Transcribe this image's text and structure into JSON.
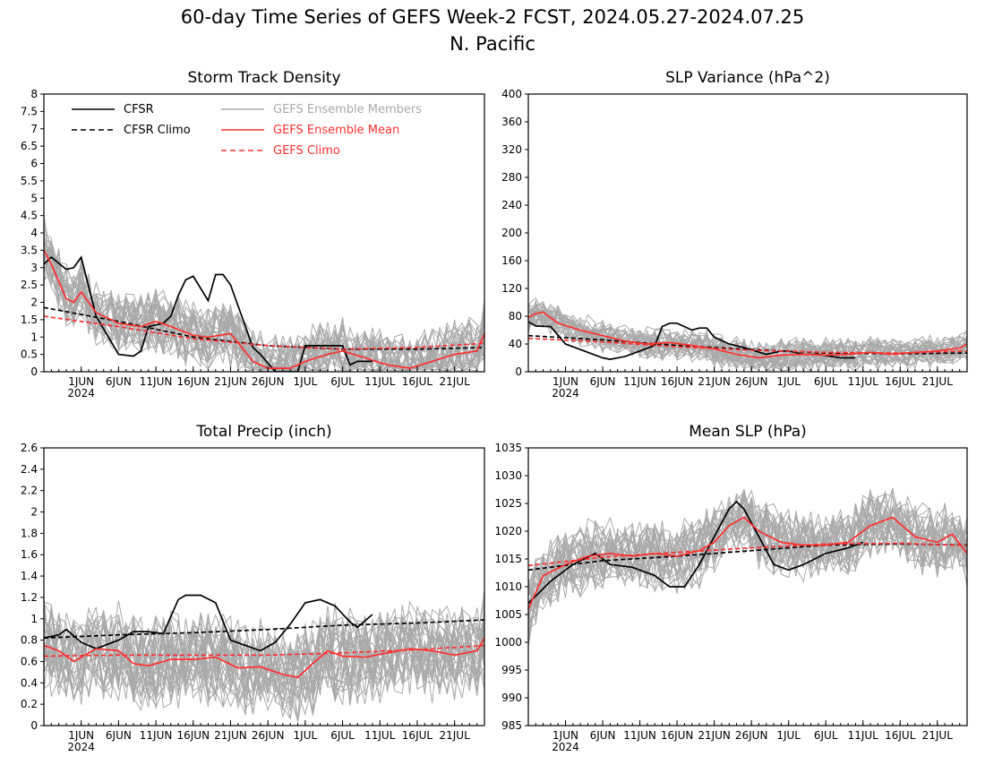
{
  "page": {
    "title_line1": "60-day Time Series of GEFS Week-2 FCST, 2024.05.27-2024.07.25",
    "title_line2": "N. Pacific"
  },
  "legend": {
    "cfsr": "CFSR",
    "cfsr_climo": "CFSR Climo",
    "gefs_members": "GEFS Ensemble Members",
    "gefs_mean": "GEFS Ensemble Mean",
    "gefs_climo": "GEFS Climo"
  },
  "colors": {
    "cfsr": "#000000",
    "members": "#a9a9a9",
    "gefs": "#ff3030",
    "legend_members_text": "#a9a9a9",
    "legend_gefs_text": "#ff3030"
  },
  "x_axis": {
    "start_date": "2024-05-27",
    "end_date": "2024-07-25",
    "ticks": [
      {
        "day": 5,
        "label": "1JUN"
      },
      {
        "day": 10,
        "label": "6JUN"
      },
      {
        "day": 15,
        "label": "11JUN"
      },
      {
        "day": 20,
        "label": "16JUN"
      },
      {
        "day": 25,
        "label": "21JUN"
      },
      {
        "day": 30,
        "label": "26JUN"
      },
      {
        "day": 35,
        "label": "1JUL"
      },
      {
        "day": 40,
        "label": "6JUL"
      },
      {
        "day": 45,
        "label": "11JUL"
      },
      {
        "day": 50,
        "label": "16JUL"
      },
      {
        "day": 55,
        "label": "21JUL"
      }
    ],
    "year_label": "2024"
  },
  "chart_data": [
    {
      "type": "line",
      "title": "Storm Track Density",
      "ylim": [
        0,
        8
      ],
      "yticks": [
        "0",
        "0.5",
        "1",
        "1.5",
        "2",
        "2.5",
        "3",
        "3.5",
        "4",
        "4.5",
        "5",
        "5.5",
        "6",
        "6.5",
        "7",
        "7.5",
        "8"
      ],
      "grid": false,
      "legend_position": "top",
      "ensemble": {
        "center": 0.5,
        "spread": 0.9
      },
      "series": [
        {
          "name": "CFSR",
          "style": "solid",
          "color": "#000000",
          "x": [
            "2024-05-27",
            "2024-05-28",
            "2024-05-30",
            "2024-05-31",
            "2024-06-01",
            "2024-06-03",
            "2024-06-06",
            "2024-06-08",
            "2024-06-09",
            "2024-06-10",
            "2024-06-11",
            "2024-06-12",
            "2024-06-13",
            "2024-06-14",
            "2024-06-15",
            "2024-06-16",
            "2024-06-18",
            "2024-06-19",
            "2024-06-20",
            "2024-06-21",
            "2024-06-22",
            "2024-06-23",
            "2024-06-24",
            "2024-06-25",
            "2024-06-27",
            "2024-06-30",
            "2024-07-01",
            "2024-07-04",
            "2024-07-06",
            "2024-07-07",
            "2024-07-08",
            "2024-07-10"
          ],
          "values": [
            3.1,
            3.3,
            2.95,
            3.0,
            3.3,
            1.6,
            0.5,
            0.45,
            0.6,
            1.3,
            1.35,
            1.4,
            1.6,
            2.2,
            2.65,
            2.75,
            2.05,
            2.8,
            2.8,
            2.5,
            1.9,
            1.3,
            0.7,
            0.5,
            0.0,
            0.0,
            0.75,
            0.75,
            0.75,
            0.2,
            0.3,
            0.3
          ]
        },
        {
          "name": "CFSR Climo",
          "style": "dashed",
          "color": "#000000",
          "x": [
            "2024-05-27",
            "2024-06-06",
            "2024-06-16",
            "2024-06-26",
            "2024-07-06",
            "2024-07-16",
            "2024-07-25"
          ],
          "values": [
            1.85,
            1.45,
            1.0,
            0.75,
            0.65,
            0.65,
            0.7
          ]
        },
        {
          "name": "GEFS Ensemble Mean",
          "style": "solid",
          "color": "#ff3030",
          "x": [
            "2024-05-27",
            "2024-05-28",
            "2024-05-30",
            "2024-05-31",
            "2024-06-01",
            "2024-06-03",
            "2024-06-06",
            "2024-06-09",
            "2024-06-11",
            "2024-06-13",
            "2024-06-16",
            "2024-06-18",
            "2024-06-21",
            "2024-06-24",
            "2024-06-26",
            "2024-06-29",
            "2024-07-01",
            "2024-07-04",
            "2024-07-06",
            "2024-07-09",
            "2024-07-12",
            "2024-07-15",
            "2024-07-18",
            "2024-07-21",
            "2024-07-24",
            "2024-07-25"
          ],
          "values": [
            3.5,
            3.1,
            2.1,
            2.0,
            2.3,
            1.7,
            1.4,
            1.3,
            1.45,
            1.3,
            1.05,
            1.0,
            1.1,
            0.3,
            0.1,
            0.1,
            0.3,
            0.5,
            0.6,
            0.4,
            0.2,
            0.1,
            0.3,
            0.5,
            0.6,
            1.1
          ]
        },
        {
          "name": "GEFS Climo",
          "style": "dashed",
          "color": "#ff3030",
          "x": [
            "2024-05-27",
            "2024-06-06",
            "2024-06-16",
            "2024-06-26",
            "2024-07-06",
            "2024-07-16",
            "2024-07-25"
          ],
          "values": [
            1.6,
            1.3,
            0.95,
            0.75,
            0.65,
            0.7,
            0.82
          ]
        }
      ]
    },
    {
      "type": "line",
      "title": "SLP Variance (hPa^2)",
      "ylim": [
        0,
        400
      ],
      "yticks": [
        "0",
        "40",
        "80",
        "120",
        "160",
        "200",
        "240",
        "280",
        "320",
        "360",
        "400"
      ],
      "grid": false,
      "ensemble": {
        "center": 34,
        "spread": 22
      },
      "series": [
        {
          "name": "CFSR",
          "style": "solid",
          "color": "#000000",
          "x": [
            "2024-05-27",
            "2024-05-28",
            "2024-05-30",
            "2024-06-01",
            "2024-06-03",
            "2024-06-06",
            "2024-06-07",
            "2024-06-09",
            "2024-06-11",
            "2024-06-13",
            "2024-06-14",
            "2024-06-15",
            "2024-06-16",
            "2024-06-18",
            "2024-06-19",
            "2024-06-20",
            "2024-06-21",
            "2024-06-23",
            "2024-06-25",
            "2024-06-28",
            "2024-06-30",
            "2024-07-01",
            "2024-07-03",
            "2024-07-05",
            "2024-07-08",
            "2024-07-10"
          ],
          "values": [
            72,
            66,
            65,
            40,
            32,
            20,
            18,
            22,
            30,
            38,
            65,
            70,
            70,
            60,
            63,
            63,
            50,
            40,
            35,
            25,
            30,
            30,
            25,
            25,
            20,
            20
          ]
        },
        {
          "name": "CFSR Climo",
          "style": "dashed",
          "color": "#000000",
          "x": [
            "2024-05-27",
            "2024-06-06",
            "2024-06-16",
            "2024-06-26",
            "2024-07-06",
            "2024-07-16",
            "2024-07-25"
          ],
          "values": [
            52,
            46,
            38,
            32,
            27,
            26,
            27
          ]
        },
        {
          "name": "GEFS Ensemble Mean",
          "style": "solid",
          "color": "#ff3030",
          "x": [
            "2024-05-27",
            "2024-05-28",
            "2024-05-29",
            "2024-05-31",
            "2024-06-03",
            "2024-06-06",
            "2024-06-09",
            "2024-06-12",
            "2024-06-15",
            "2024-06-18",
            "2024-06-21",
            "2024-06-24",
            "2024-06-27",
            "2024-06-30",
            "2024-07-03",
            "2024-07-06",
            "2024-07-09",
            "2024-07-12",
            "2024-07-15",
            "2024-07-18",
            "2024-07-21",
            "2024-07-24",
            "2024-07-25"
          ],
          "values": [
            78,
            84,
            86,
            70,
            60,
            52,
            44,
            40,
            42,
            38,
            33,
            25,
            20,
            24,
            25,
            24,
            25,
            28,
            25,
            28,
            30,
            34,
            40
          ]
        },
        {
          "name": "GEFS Climo",
          "style": "dashed",
          "color": "#ff3030",
          "x": [
            "2024-05-27",
            "2024-06-06",
            "2024-06-16",
            "2024-06-26",
            "2024-07-06",
            "2024-07-16",
            "2024-07-25"
          ],
          "values": [
            48,
            43,
            36,
            31,
            28,
            27,
            30
          ]
        }
      ]
    },
    {
      "type": "line",
      "title": "Total Precip (inch)",
      "ylim": [
        0,
        2.6
      ],
      "yticks": [
        "0",
        "0.2",
        "0.4",
        "0.6",
        "0.8",
        "1",
        "1.2",
        "1.4",
        "1.6",
        "1.8",
        "2",
        "2.2",
        "2.4",
        "2.6"
      ],
      "grid": false,
      "ensemble": {
        "center": 0.66,
        "spread": 0.42
      },
      "series": [
        {
          "name": "CFSR",
          "style": "solid",
          "color": "#000000",
          "x": [
            "2024-05-27",
            "2024-05-29",
            "2024-05-30",
            "2024-06-01",
            "2024-06-03",
            "2024-06-06",
            "2024-06-08",
            "2024-06-10",
            "2024-06-12",
            "2024-06-14",
            "2024-06-15",
            "2024-06-17",
            "2024-06-19",
            "2024-06-21",
            "2024-06-23",
            "2024-06-25",
            "2024-06-27",
            "2024-06-29",
            "2024-07-01",
            "2024-07-03",
            "2024-07-05",
            "2024-07-07",
            "2024-07-08",
            "2024-07-10"
          ],
          "values": [
            0.82,
            0.85,
            0.9,
            0.78,
            0.72,
            0.8,
            0.88,
            0.88,
            0.86,
            1.18,
            1.22,
            1.22,
            1.15,
            0.8,
            0.75,
            0.7,
            0.78,
            0.95,
            1.15,
            1.18,
            1.12,
            0.97,
            0.92,
            1.04
          ]
        },
        {
          "name": "CFSR Climo",
          "style": "dashed",
          "color": "#000000",
          "x": [
            "2024-05-27",
            "2024-06-06",
            "2024-06-16",
            "2024-06-26",
            "2024-07-06",
            "2024-07-16",
            "2024-07-25"
          ],
          "values": [
            0.82,
            0.85,
            0.87,
            0.9,
            0.94,
            0.96,
            0.99
          ]
        },
        {
          "name": "GEFS Ensemble Mean",
          "style": "solid",
          "color": "#ff3030",
          "x": [
            "2024-05-27",
            "2024-05-29",
            "2024-05-31",
            "2024-06-03",
            "2024-06-06",
            "2024-06-08",
            "2024-06-10",
            "2024-06-13",
            "2024-06-16",
            "2024-06-19",
            "2024-06-22",
            "2024-06-25",
            "2024-06-28",
            "2024-06-30",
            "2024-07-02",
            "2024-07-04",
            "2024-07-06",
            "2024-07-09",
            "2024-07-12",
            "2024-07-15",
            "2024-07-18",
            "2024-07-21",
            "2024-07-24",
            "2024-07-25"
          ],
          "values": [
            0.75,
            0.7,
            0.6,
            0.72,
            0.7,
            0.58,
            0.56,
            0.62,
            0.62,
            0.64,
            0.54,
            0.55,
            0.48,
            0.45,
            0.58,
            0.7,
            0.65,
            0.64,
            0.68,
            0.72,
            0.7,
            0.66,
            0.7,
            0.82
          ]
        },
        {
          "name": "GEFS Climo",
          "style": "dashed",
          "color": "#ff3030",
          "x": [
            "2024-05-27",
            "2024-06-06",
            "2024-06-16",
            "2024-06-26",
            "2024-07-06",
            "2024-07-16",
            "2024-07-25"
          ],
          "values": [
            0.65,
            0.66,
            0.66,
            0.66,
            0.68,
            0.71,
            0.75
          ]
        }
      ]
    },
    {
      "type": "line",
      "title": "Mean SLP (hPa)",
      "ylim": [
        985,
        1035
      ],
      "yticks": [
        "985",
        "990",
        "995",
        "1000",
        "1005",
        "1010",
        "1015",
        "1020",
        "1025",
        "1030",
        "1035"
      ],
      "grid": false,
      "ensemble": {
        "center": 1016.5,
        "spread": 6
      },
      "series": [
        {
          "name": "CFSR",
          "style": "solid",
          "color": "#000000",
          "x": [
            "2024-05-27",
            "2024-05-30",
            "2024-06-02",
            "2024-06-05",
            "2024-06-07",
            "2024-06-10",
            "2024-06-13",
            "2024-06-15",
            "2024-06-17",
            "2024-06-19",
            "2024-06-21",
            "2024-06-23",
            "2024-06-24",
            "2024-06-25",
            "2024-06-27",
            "2024-06-29",
            "2024-07-01",
            "2024-07-03",
            "2024-07-06",
            "2024-07-09",
            "2024-07-11"
          ],
          "values": [
            1007,
            1011,
            1014,
            1016,
            1014,
            1013.5,
            1012,
            1010,
            1010,
            1014,
            1019,
            1024,
            1025.3,
            1024,
            1019,
            1014,
            1013,
            1014,
            1016,
            1017,
            1018
          ]
        },
        {
          "name": "CFSR Climo",
          "style": "dashed",
          "color": "#000000",
          "x": [
            "2024-05-27",
            "2024-06-06",
            "2024-06-16",
            "2024-06-26",
            "2024-07-06",
            "2024-07-16",
            "2024-07-25"
          ],
          "values": [
            1013,
            1014.7,
            1015.5,
            1016.5,
            1017.5,
            1017.7,
            1017.5
          ]
        },
        {
          "name": "GEFS Ensemble Mean",
          "style": "solid",
          "color": "#ff3030",
          "x": [
            "2024-05-27",
            "2024-05-29",
            "2024-06-01",
            "2024-06-04",
            "2024-06-07",
            "2024-06-10",
            "2024-06-13",
            "2024-06-16",
            "2024-06-19",
            "2024-06-21",
            "2024-06-23",
            "2024-06-25",
            "2024-06-27",
            "2024-06-30",
            "2024-07-03",
            "2024-07-06",
            "2024-07-09",
            "2024-07-12",
            "2024-07-15",
            "2024-07-18",
            "2024-07-21",
            "2024-07-23",
            "2024-07-25"
          ],
          "values": [
            1006,
            1012,
            1014,
            1015.5,
            1016,
            1015.5,
            1016,
            1015.5,
            1016.5,
            1018,
            1021,
            1022.5,
            1020,
            1018,
            1017.5,
            1017.5,
            1018,
            1021,
            1022.5,
            1019,
            1018,
            1019.5,
            1016
          ]
        },
        {
          "name": "GEFS Climo",
          "style": "dashed",
          "color": "#ff3030",
          "x": [
            "2024-05-27",
            "2024-06-06",
            "2024-06-16",
            "2024-06-26",
            "2024-07-06",
            "2024-07-16",
            "2024-07-25"
          ],
          "values": [
            1013.8,
            1015.3,
            1016.2,
            1017,
            1017.7,
            1017.8,
            1017.4
          ]
        }
      ]
    }
  ]
}
